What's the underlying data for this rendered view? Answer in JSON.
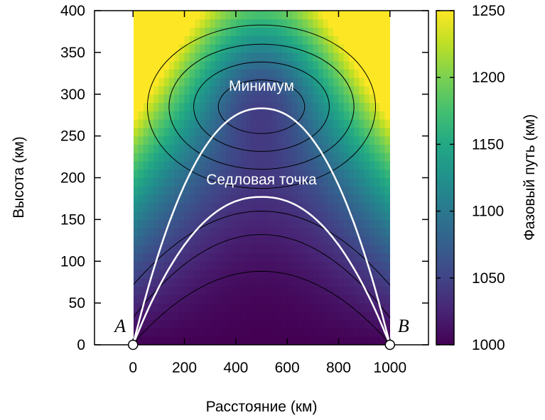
{
  "chart_data": {
    "type": "heatmap",
    "xlabel": "Расстояние (км)",
    "ylabel": "Высота (км)",
    "xlim": [
      -150,
      1150
    ],
    "ylim": [
      0,
      400
    ],
    "x_ticks": [
      "0",
      "200",
      "400",
      "600",
      "800",
      "1000"
    ],
    "x_tick_values": [
      0,
      200,
      400,
      600,
      800,
      1000
    ],
    "y_ticks": [
      "0",
      "50",
      "100",
      "150",
      "200",
      "250",
      "300",
      "350",
      "400"
    ],
    "y_tick_values": [
      0,
      50,
      100,
      150,
      200,
      250,
      300,
      350,
      400
    ],
    "colorbar": {
      "label": "Фазовый путь (км)",
      "ticks": [
        "1000",
        "1050",
        "1100",
        "1150",
        "1200",
        "1250"
      ],
      "tick_values": [
        1000,
        1050,
        1100,
        1150,
        1200,
        1250
      ],
      "range": [
        1000,
        1250
      ],
      "colormap": "viridis"
    },
    "heatmap_extent": {
      "x": [
        0,
        1000
      ],
      "y": [
        0,
        400
      ]
    },
    "rays": [
      {
        "label": "Минимум",
        "apex": [
          500,
          283
        ],
        "endpoints": [
          [
            0,
            0
          ],
          [
            1000,
            0
          ]
        ],
        "color": "#ffffff"
      },
      {
        "label": "Седловая точка",
        "apex": [
          500,
          177
        ],
        "endpoints": [
          [
            0,
            0
          ],
          [
            1000,
            0
          ]
        ],
        "color": "#ffffff"
      }
    ],
    "annotations": [
      {
        "text": "Минимум",
        "x": 500,
        "y": 310
      },
      {
        "text": "Седловая точка",
        "x": 500,
        "y": 198
      }
    ],
    "points": [
      {
        "label": "A",
        "x": 0,
        "y": 0
      },
      {
        "label": "B",
        "x": 1000,
        "y": 0
      }
    ],
    "contour_lines": true,
    "grid": false
  }
}
